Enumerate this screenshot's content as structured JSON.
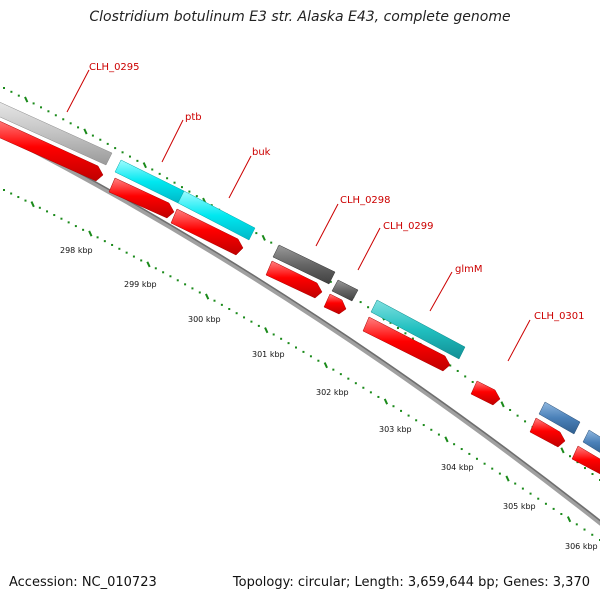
{
  "title": "Clostridium botulinum E3 str. Alaska E43, complete genome",
  "footer": {
    "accession": "Accession: NC_010723",
    "summary": "Topology: circular; Length: 3,659,644 bp; Genes: 3,370"
  },
  "colors": {
    "cds": "#ff0000",
    "backbone": "#808080",
    "tick": "#1a8a1a",
    "label": "#cc0000"
  },
  "gene_labels": [
    {
      "id": "CLH_0295",
      "text": "CLH_0295"
    },
    {
      "id": "ptb",
      "text": "ptb"
    },
    {
      "id": "buk",
      "text": "buk"
    },
    {
      "id": "CLH_0298",
      "text": "CLH_0298"
    },
    {
      "id": "CLH_0299",
      "text": "CLH_0299"
    },
    {
      "id": "glmM",
      "text": "glmM"
    },
    {
      "id": "CLH_0301",
      "text": "CLH_0301"
    }
  ],
  "kbp_labels": [
    "298 kbp",
    "299 kbp",
    "300 kbp",
    "301 kbp",
    "302 kbp",
    "303 kbp",
    "304 kbp",
    "305 kbp",
    "306 kbp"
  ]
}
